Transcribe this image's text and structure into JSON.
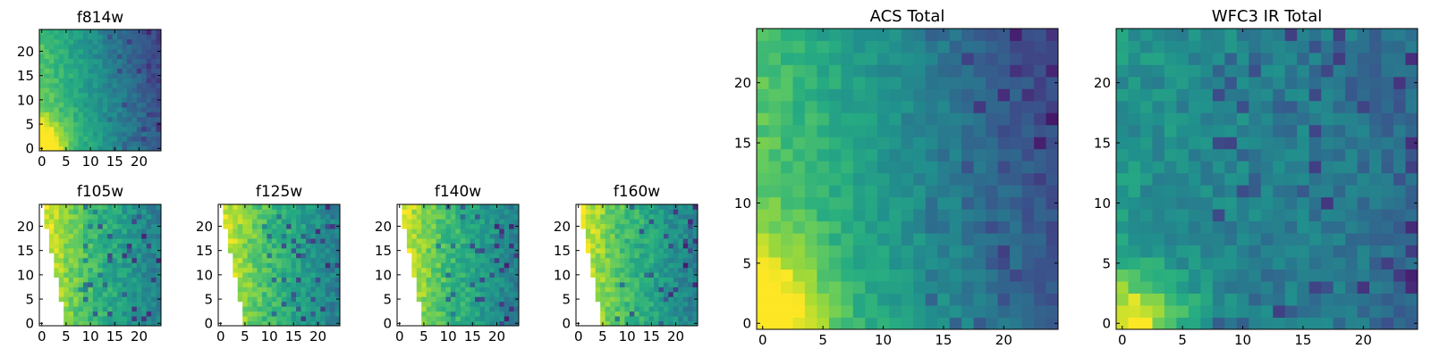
{
  "colormap": "viridis",
  "colors": {
    "frame": "#000000",
    "background": "#ffffff",
    "missing": "#ffffff"
  },
  "chart_data": [
    {
      "id": "f814w",
      "type": "heatmap",
      "title": "f814w",
      "pattern": "optical",
      "blank_wedge": false,
      "grid_size": [
        25,
        25
      ],
      "xlim": [
        -0.5,
        24.5
      ],
      "ylim": [
        -0.5,
        24.5
      ],
      "xticks": [
        0,
        5,
        10,
        15,
        20
      ],
      "yticks": [
        0,
        5,
        10,
        15,
        20
      ],
      "xlabel": "",
      "ylabel": "",
      "color_range": [
        0,
        1
      ]
    },
    {
      "id": "f105w",
      "type": "heatmap",
      "title": "f105w",
      "pattern": "ir",
      "blank_wedge": true,
      "grid_size": [
        25,
        25
      ],
      "xlim": [
        -0.5,
        24.5
      ],
      "ylim": [
        -0.5,
        24.5
      ],
      "xticks": [
        0,
        5,
        10,
        15,
        20
      ],
      "yticks": [
        0,
        5,
        10,
        15,
        20
      ],
      "xlabel": "",
      "ylabel": "",
      "color_range": [
        0,
        1
      ]
    },
    {
      "id": "f125w",
      "type": "heatmap",
      "title": "f125w",
      "pattern": "ir",
      "blank_wedge": true,
      "grid_size": [
        25,
        25
      ],
      "xlim": [
        -0.5,
        24.5
      ],
      "ylim": [
        -0.5,
        24.5
      ],
      "xticks": [
        0,
        5,
        10,
        15,
        20
      ],
      "yticks": [
        0,
        5,
        10,
        15,
        20
      ],
      "xlabel": "",
      "ylabel": "",
      "color_range": [
        0,
        1
      ]
    },
    {
      "id": "f140w",
      "type": "heatmap",
      "title": "f140w",
      "pattern": "ir",
      "blank_wedge": true,
      "grid_size": [
        25,
        25
      ],
      "xlim": [
        -0.5,
        24.5
      ],
      "ylim": [
        -0.5,
        24.5
      ],
      "xticks": [
        0,
        5,
        10,
        15,
        20
      ],
      "yticks": [
        0,
        5,
        10,
        15,
        20
      ],
      "xlabel": "",
      "ylabel": "",
      "color_range": [
        0,
        1
      ]
    },
    {
      "id": "f160w",
      "type": "heatmap",
      "title": "f160w",
      "pattern": "ir",
      "blank_wedge": true,
      "grid_size": [
        25,
        25
      ],
      "xlim": [
        -0.5,
        24.5
      ],
      "ylim": [
        -0.5,
        24.5
      ],
      "xticks": [
        0,
        5,
        10,
        15,
        20
      ],
      "yticks": [
        0,
        5,
        10,
        15,
        20
      ],
      "xlabel": "",
      "ylabel": "",
      "color_range": [
        0,
        1
      ]
    },
    {
      "id": "acs-total",
      "type": "heatmap",
      "title": "ACS Total",
      "pattern": "optical",
      "blank_wedge": false,
      "grid_size": [
        25,
        25
      ],
      "xlim": [
        -0.5,
        24.5
      ],
      "ylim": [
        -0.5,
        24.5
      ],
      "xticks": [
        0,
        5,
        10,
        15,
        20
      ],
      "yticks": [
        0,
        5,
        10,
        15,
        20
      ],
      "xlabel": "",
      "ylabel": "",
      "color_range": [
        0,
        1
      ]
    },
    {
      "id": "wfc3-ir-total",
      "type": "heatmap",
      "title": "WFC3 IR Total",
      "pattern": "wfc3",
      "blank_wedge": false,
      "grid_size": [
        25,
        25
      ],
      "xlim": [
        -0.5,
        24.5
      ],
      "ylim": [
        -0.5,
        24.5
      ],
      "xticks": [
        0,
        5,
        10,
        15,
        20
      ],
      "yticks": [
        0,
        5,
        10,
        15,
        20
      ],
      "xlabel": "",
      "ylabel": "",
      "color_range": [
        0,
        1
      ]
    }
  ]
}
